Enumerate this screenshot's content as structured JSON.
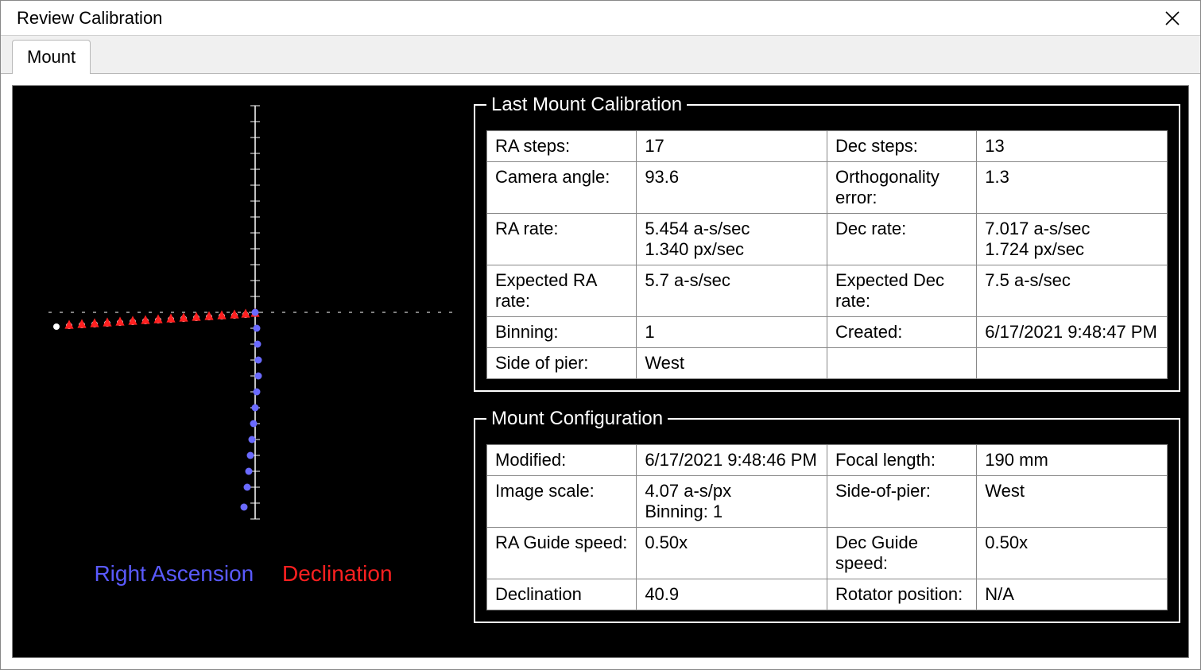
{
  "window": {
    "title": "Review Calibration",
    "tabs": [
      {
        "label": "Mount",
        "active": true
      }
    ]
  },
  "chart": {
    "type": "scatter",
    "background_color": "#000000",
    "axis_color": "#ffffff",
    "tick_color": "#ffffff",
    "xlim": [
      -260,
      260
    ],
    "ylim": [
      -260,
      260
    ],
    "tick_step": 20,
    "legend": {
      "ra": {
        "label": "Right Ascension",
        "color": "#5a5aff"
      },
      "dec": {
        "label": "Declination",
        "color": "#ff2020"
      }
    },
    "series": {
      "ra_white": {
        "color": "#ffffff",
        "marker": "circle",
        "marker_size": 8,
        "points": [
          [
            -250,
            -18
          ],
          [
            -234,
            -17
          ],
          [
            -218,
            -16
          ],
          [
            -202,
            -15
          ],
          [
            -186,
            -14
          ],
          [
            -170,
            -13
          ],
          [
            -154,
            -12
          ],
          [
            -138,
            -11
          ],
          [
            -122,
            -10
          ],
          [
            -106,
            -9
          ],
          [
            -90,
            -8
          ],
          [
            -74,
            -7
          ],
          [
            -58,
            -6
          ],
          [
            -42,
            -5
          ],
          [
            -26,
            -4
          ],
          [
            -12,
            -3
          ],
          [
            0,
            0
          ]
        ]
      },
      "ra_red": {
        "color": "#ff2020",
        "marker": "triangle",
        "marker_size": 9,
        "points": [
          [
            -234,
            -15
          ],
          [
            -218,
            -14
          ],
          [
            -202,
            -13
          ],
          [
            -186,
            -12
          ],
          [
            -170,
            -11
          ],
          [
            -154,
            -10
          ],
          [
            -138,
            -9
          ],
          [
            -122,
            -8
          ],
          [
            -106,
            -7
          ],
          [
            -90,
            -6
          ],
          [
            -74,
            -5
          ],
          [
            -58,
            -4
          ],
          [
            -42,
            -3
          ],
          [
            -26,
            -2
          ],
          [
            -12,
            -1
          ],
          [
            0,
            0
          ]
        ]
      },
      "dec_blue": {
        "color": "#6a6aff",
        "marker": "circle",
        "marker_size": 9,
        "points": [
          [
            0,
            0
          ],
          [
            2,
            -20
          ],
          [
            3,
            -40
          ],
          [
            4,
            -60
          ],
          [
            4,
            -80
          ],
          [
            2,
            -100
          ],
          [
            0,
            -120
          ],
          [
            -2,
            -140
          ],
          [
            -4,
            -160
          ],
          [
            -6,
            -180
          ],
          [
            -8,
            -200
          ],
          [
            -10,
            -220
          ],
          [
            -14,
            -245
          ]
        ]
      }
    }
  },
  "last_calibration": {
    "title": "Last Mount Calibration",
    "rows": [
      [
        "RA steps:",
        "17",
        "Dec steps:",
        "13"
      ],
      [
        "Camera angle:",
        "93.6",
        "Orthogonality error:",
        "1.3"
      ],
      [
        "RA rate:",
        "5.454 a-s/sec\n1.340 px/sec",
        "Dec rate:",
        "7.017 a-s/sec\n1.724 px/sec"
      ],
      [
        "Expected RA rate:",
        "5.7 a-s/sec",
        "Expected Dec rate:",
        "7.5 a-s/sec"
      ],
      [
        "Binning:",
        "1",
        "Created:",
        "6/17/2021 9:48:47 PM"
      ],
      [
        "Side of pier:",
        "West",
        "",
        ""
      ]
    ]
  },
  "mount_config": {
    "title": "Mount Configuration",
    "rows": [
      [
        "Modified:",
        "6/17/2021 9:48:46 PM",
        "Focal length:",
        "190 mm"
      ],
      [
        "Image scale:",
        "4.07 a-s/px\nBinning: 1",
        "Side-of-pier:",
        "West"
      ],
      [
        "RA Guide speed:",
        "0.50x",
        "Dec Guide speed:",
        "0.50x"
      ],
      [
        "Declination",
        "40.9",
        "Rotator position:",
        "N/A"
      ]
    ]
  },
  "colors": {
    "window_bg": "#ffffff",
    "panel_bg": "#000000",
    "text": "#000000",
    "group_border": "#ffffff",
    "table_border": "#888888"
  }
}
